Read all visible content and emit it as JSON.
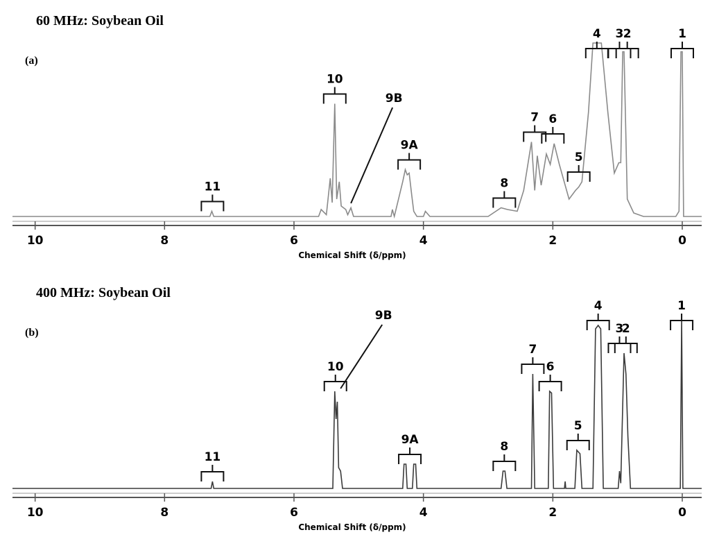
{
  "chart_data": [
    {
      "type": "line",
      "title": "60 MHz: Soybean Oil",
      "panel_label": "(a)",
      "x_label": "Chemical Shift (δ/ppm)",
      "color": "#8a8a8a",
      "xlim": [
        10.35,
        -0.3
      ],
      "xticks": [
        10,
        8,
        6,
        4,
        2,
        0
      ],
      "x": [
        10.35,
        7.3,
        7.27,
        7.24,
        5.62,
        5.58,
        5.5,
        5.44,
        5.41,
        5.37,
        5.34,
        5.3,
        5.27,
        5.2,
        5.17,
        5.12,
        5.08,
        4.5,
        4.48,
        4.45,
        4.32,
        4.28,
        4.25,
        4.22,
        4.18,
        4.15,
        4.1,
        4.0,
        3.97,
        3.9,
        3.0,
        2.8,
        2.7,
        2.55,
        2.45,
        2.33,
        2.28,
        2.24,
        2.18,
        2.1,
        2.04,
        1.98,
        1.9,
        1.75,
        1.65,
        1.6,
        1.55,
        1.45,
        1.38,
        1.25,
        1.15,
        1.05,
        0.98,
        0.95,
        0.92,
        0.9,
        0.85,
        0.75,
        0.6,
        0.1,
        0.05,
        0.02,
        0,
        -0.02,
        -0.3
      ],
      "values": [
        0,
        0,
        3,
        0,
        0,
        4,
        1,
        22,
        8,
        65,
        10,
        20,
        6,
        4,
        1,
        5,
        0,
        0,
        4,
        0,
        20,
        27,
        24,
        25,
        12,
        3,
        0,
        0,
        3,
        0,
        0,
        5,
        4,
        3,
        15,
        43,
        15,
        35,
        18,
        36,
        30,
        42,
        30,
        10,
        15,
        17,
        20,
        60,
        100,
        100,
        60,
        25,
        31,
        31,
        95,
        95,
        10,
        2,
        0,
        0,
        3,
        95,
        95,
        0,
        0
      ],
      "annotations": [
        {
          "text": "11",
          "x": 7.26
        },
        {
          "text": "10",
          "x": 5.37
        },
        {
          "text": "9B",
          "x": 5.12,
          "leader": true
        },
        {
          "text": "9A",
          "x": 4.22
        },
        {
          "text": "8",
          "x": 2.75
        },
        {
          "text": "7",
          "x": 2.28
        },
        {
          "text": "6",
          "x": 2.0
        },
        {
          "text": "5",
          "x": 1.6
        },
        {
          "text": "4",
          "x": 1.32
        },
        {
          "text": "3",
          "x": 0.97
        },
        {
          "text": "2",
          "x": 0.85
        },
        {
          "text": "1",
          "x": 0
        }
      ]
    },
    {
      "type": "line",
      "title": "400 MHz: Soybean Oil",
      "panel_label": "(b)",
      "x_label": "Chemical Shift (δ/ppm)",
      "color": "#3a3a3a",
      "xlim": [
        10.35,
        -0.3
      ],
      "xticks": [
        10,
        8,
        6,
        4,
        2,
        0
      ],
      "x": [
        10.35,
        7.28,
        7.26,
        7.24,
        5.4,
        5.37,
        5.35,
        5.33,
        5.31,
        5.28,
        5.25,
        4.32,
        4.3,
        4.27,
        4.25,
        4.17,
        4.15,
        4.12,
        4.1,
        2.8,
        2.77,
        2.74,
        2.71,
        2.33,
        2.31,
        2.28,
        2.07,
        2.05,
        2.02,
        1.99,
        1.82,
        1.81,
        1.8,
        1.66,
        1.63,
        1.58,
        1.55,
        1.38,
        1.34,
        1.3,
        1.26,
        1.22,
        0.99,
        0.97,
        0.95,
        0.9,
        0.87,
        0.84,
        0.8,
        0.03,
        0.01,
        -0.01,
        -0.3
      ],
      "values": [
        0,
        0,
        4,
        0,
        0,
        56,
        40,
        50,
        12,
        10,
        0,
        0,
        14,
        14,
        0,
        0,
        14,
        14,
        0,
        0,
        10,
        10,
        0,
        0,
        66,
        0,
        0,
        56,
        55,
        0,
        0,
        4,
        0,
        0,
        22,
        20,
        0,
        0,
        92,
        94,
        92,
        0,
        0,
        10,
        3,
        78,
        66,
        30,
        0,
        0,
        98,
        0,
        0
      ],
      "annotations": [
        {
          "text": "11",
          "x": 7.26
        },
        {
          "text": "10",
          "x": 5.36
        },
        {
          "text": "9B",
          "x": 5.28,
          "leader": true
        },
        {
          "text": "9A",
          "x": 4.21
        },
        {
          "text": "8",
          "x": 2.75
        },
        {
          "text": "7",
          "x": 2.31
        },
        {
          "text": "6",
          "x": 2.04
        },
        {
          "text": "5",
          "x": 1.61
        },
        {
          "text": "4",
          "x": 1.3
        },
        {
          "text": "3",
          "x": 0.97
        },
        {
          "text": "2",
          "x": 0.87
        },
        {
          "text": "1",
          "x": 0.01
        }
      ]
    }
  ]
}
